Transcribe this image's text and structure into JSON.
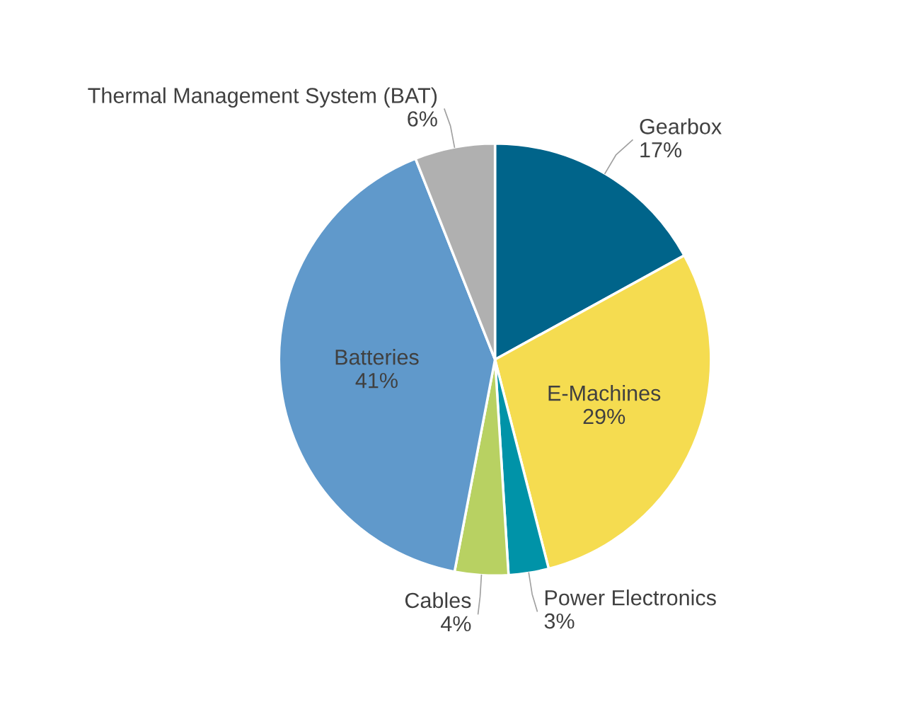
{
  "chart_data": {
    "type": "pie",
    "categories": [
      "Gearbox",
      "E-Machines",
      "Power Electronics",
      "Cables",
      "Batteries",
      "Thermal Management System (BAT)"
    ],
    "values": [
      17,
      29,
      3,
      4,
      41,
      6
    ],
    "value_labels": [
      "17%",
      "29%",
      "3%",
      "4%",
      "41%",
      "6%"
    ],
    "colors": [
      "#00648a",
      "#f5dc50",
      "#0093a8",
      "#b8d162",
      "#6099cb",
      "#b0b0b0"
    ],
    "legend": false
  }
}
